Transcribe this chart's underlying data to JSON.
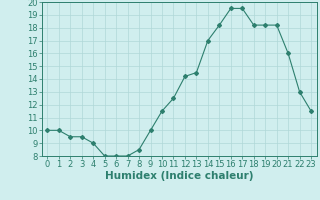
{
  "x": [
    0,
    1,
    2,
    3,
    4,
    5,
    6,
    7,
    8,
    9,
    10,
    11,
    12,
    13,
    14,
    15,
    16,
    17,
    18,
    19,
    20,
    21,
    22,
    23
  ],
  "y": [
    10,
    10,
    9.5,
    9.5,
    9,
    8,
    8,
    8,
    8.5,
    10,
    11.5,
    12.5,
    14.2,
    14.5,
    17,
    18.2,
    19.5,
    19.5,
    18.2,
    18.2,
    18.2,
    16,
    13,
    11.5
  ],
  "title": "",
  "xlabel": "Humidex (Indice chaleur)",
  "xlim": [
    -0.5,
    23.5
  ],
  "ylim": [
    8,
    20
  ],
  "yticks": [
    8,
    9,
    10,
    11,
    12,
    13,
    14,
    15,
    16,
    17,
    18,
    19,
    20
  ],
  "xticks": [
    0,
    1,
    2,
    3,
    4,
    5,
    6,
    7,
    8,
    9,
    10,
    11,
    12,
    13,
    14,
    15,
    16,
    17,
    18,
    19,
    20,
    21,
    22,
    23
  ],
  "line_color": "#2d7f6e",
  "marker": "D",
  "marker_size": 2.0,
  "bg_color": "#d0eeee",
  "grid_color": "#b0d8d8",
  "axes_color": "#2d7f6e",
  "xlabel_fontsize": 7.5,
  "tick_fontsize": 6.0
}
